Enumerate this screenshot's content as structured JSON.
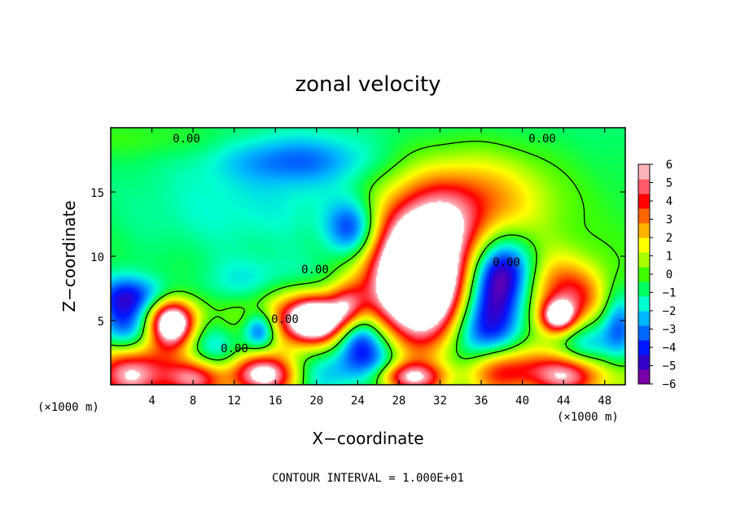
{
  "chart_data": {
    "type": "heatmap",
    "title": "zonal velocity",
    "xlabel": "X−coordinate",
    "ylabel": "Z−coordinate",
    "x_unit_left": "(×1000 m)",
    "x_unit_right": "(×1000 m)",
    "xlim": [
      0,
      50
    ],
    "ylim": [
      0,
      20
    ],
    "x_ticks": [
      4,
      8,
      12,
      16,
      20,
      24,
      28,
      32,
      36,
      40,
      44,
      48
    ],
    "x_tick_labels": [
      "4",
      "8",
      "12",
      "16",
      "20",
      "24",
      "28",
      "32",
      "36",
      "40",
      "44",
      "48"
    ],
    "y_ticks": [
      5,
      10,
      15
    ],
    "y_tick_labels": [
      "5",
      "10",
      "15"
    ],
    "colorbar": {
      "range": [
        -6,
        6
      ],
      "ticks": [
        6,
        5,
        4,
        3,
        2,
        1,
        0,
        -1,
        -2,
        -3,
        -4,
        -5,
        -6
      ],
      "tick_labels": [
        "6",
        "5",
        "4",
        "3",
        "2",
        "1",
        "0",
        "−1",
        "−2",
        "−3",
        "−4",
        "−5",
        "−6"
      ],
      "colors": [
        "#7a00a8",
        "#3500c8",
        "#0018ff",
        "#0068ff",
        "#00b8ff",
        "#00ffd0",
        "#00ff60",
        "#40ff00",
        "#a8ff00",
        "#ffff00",
        "#ffb400",
        "#ff6400",
        "#ff0000",
        "#ff5a6a",
        "#ffb4bc"
      ]
    },
    "contour_labels": [
      "0.00",
      "0.00",
      "0.00",
      "0.00",
      "0.00",
      "0.00"
    ],
    "annotation": "CONTOUR INTERVAL = 1.000E+01",
    "features": [
      {
        "x": 2,
        "z": 19.3,
        "u": 0.8,
        "sx": 8,
        "sz": 1.2
      },
      {
        "x": 18,
        "z": 17.5,
        "u": -2.2,
        "sx": 5,
        "sz": 1.3
      },
      {
        "x": 8,
        "z": 13,
        "u": -0.9,
        "sx": 7,
        "sz": 3
      },
      {
        "x": 18,
        "z": 14,
        "u": -0.9,
        "sx": 6,
        "sz": 3
      },
      {
        "x": 23.5,
        "z": 12,
        "u": -4.2,
        "sx": 1.8,
        "sz": 1.6
      },
      {
        "x": 36,
        "z": 14.5,
        "u": 3.3,
        "sx": 5,
        "sz": 2.6
      },
      {
        "x": 31,
        "z": 12.5,
        "u": 2.6,
        "sx": 3.5,
        "sz": 2.5
      },
      {
        "x": 30,
        "z": 8,
        "u": 7.5,
        "sx": 3.2,
        "sz": 3.0
      },
      {
        "x": 30,
        "z": 8,
        "u": 5.0,
        "sx": 4.5,
        "sz": 4.2
      },
      {
        "x": 37.5,
        "z": 6.2,
        "u": -5.6,
        "sx": 2.2,
        "sz": 3.0
      },
      {
        "x": 38,
        "z": 9,
        "u": -3.5,
        "sx": 2.5,
        "sz": 1.8
      },
      {
        "x": 34.5,
        "z": 3.5,
        "u": -3.5,
        "sx": 2,
        "sz": 2.5
      },
      {
        "x": 43,
        "z": 7.5,
        "u": 3.4,
        "sx": 2.5,
        "sz": 2
      },
      {
        "x": 43.5,
        "z": 5.3,
        "u": 6.5,
        "sx": 1.2,
        "sz": 0.9
      },
      {
        "x": 46,
        "z": 6.5,
        "u": 2.6,
        "sx": 1.8,
        "sz": 1.8
      },
      {
        "x": 46.5,
        "z": 3.5,
        "u": -3.2,
        "sx": 2,
        "sz": 1.6
      },
      {
        "x": 49.5,
        "z": 4.5,
        "u": -3,
        "sx": 1.2,
        "sz": 2
      },
      {
        "x": 38,
        "z": 1.2,
        "u": 5,
        "sx": 2.5,
        "sz": 1.3
      },
      {
        "x": 44.5,
        "z": 0.8,
        "u": 5.5,
        "sx": 2.5,
        "sz": 1.1
      },
      {
        "x": 29,
        "z": 0.6,
        "u": 5,
        "sx": 2.5,
        "sz": 0.8
      },
      {
        "x": 26,
        "z": 2.5,
        "u": -4,
        "sx": 2,
        "sz": 2
      },
      {
        "x": 20,
        "z": 5,
        "u": 6.5,
        "sx": 1.7,
        "sz": 1.1
      },
      {
        "x": 19,
        "z": 5.6,
        "u": 3.8,
        "sx": 3.2,
        "sz": 1.9
      },
      {
        "x": 23,
        "z": 6,
        "u": 3.5,
        "sx": 1.2,
        "sz": 1.2
      },
      {
        "x": 24,
        "z": 4,
        "u": -3.5,
        "sx": 1.5,
        "sz": 1.5
      },
      {
        "x": 14.5,
        "z": 4.2,
        "u": -5.5,
        "sx": 1.2,
        "sz": 1.1
      },
      {
        "x": 14.5,
        "z": 4.7,
        "u": 2,
        "sx": 2.8,
        "sz": 1.8
      },
      {
        "x": 10,
        "z": 3.2,
        "u": -3.2,
        "sx": 2.5,
        "sz": 1.5
      },
      {
        "x": 6,
        "z": 4.8,
        "u": 6.2,
        "sx": 1.4,
        "sz": 1.2
      },
      {
        "x": 6,
        "z": 4.8,
        "u": 3.2,
        "sx": 2.6,
        "sz": 2.1
      },
      {
        "x": 1.5,
        "z": 5,
        "u": -4.5,
        "sx": 2,
        "sz": 2.2
      },
      {
        "x": 3,
        "z": 7,
        "u": -2.5,
        "sx": 3,
        "sz": 1
      },
      {
        "x": 2,
        "z": 1,
        "u": 6,
        "sx": 2.5,
        "sz": 1.5
      },
      {
        "x": 8,
        "z": 0.5,
        "u": 4.5,
        "sx": 2,
        "sz": 1
      },
      {
        "x": 15,
        "z": 0.8,
        "u": 6.5,
        "sx": 2.5,
        "sz": 1.1
      },
      {
        "x": 21,
        "z": 1,
        "u": -3.5,
        "sx": 3,
        "sz": 1.5
      },
      {
        "x": 19,
        "z": 8,
        "u": -1.8,
        "sx": 4,
        "sz": 1.5
      },
      {
        "x": 12,
        "z": 7.5,
        "u": -1.6,
        "sx": 4,
        "sz": 1.5
      }
    ]
  }
}
